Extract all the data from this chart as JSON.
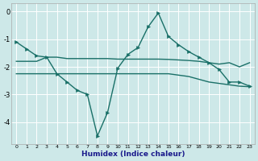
{
  "bg_color": "#cde8e8",
  "line_color": "#1a7068",
  "xlabel": "Humidex (Indice chaleur)",
  "xlim": [
    -0.5,
    23.5
  ],
  "ylim": [
    -4.8,
    0.3
  ],
  "yticks": [
    0,
    -1,
    -2,
    -3,
    -4
  ],
  "xtick_labels": [
    "0",
    "1",
    "2",
    "3",
    "4",
    "5",
    "6",
    "7",
    "8",
    "9",
    "10",
    "11",
    "12",
    "13",
    "14",
    "15",
    "16",
    "17",
    "18",
    "19",
    "20",
    "21",
    "22",
    "23"
  ],
  "x": [
    0,
    1,
    2,
    3,
    4,
    5,
    6,
    7,
    8,
    9,
    10,
    11,
    12,
    13,
    14,
    15,
    16,
    17,
    18,
    19,
    20,
    21,
    22,
    23
  ],
  "y_zigzag": [
    -1.1,
    -1.35,
    -1.6,
    -1.65,
    -2.25,
    -2.55,
    -2.85,
    -3.0,
    -4.5,
    -3.65,
    -2.05,
    -1.55,
    -1.3,
    -0.55,
    -0.05,
    -0.9,
    -1.2,
    -1.45,
    -1.65,
    -1.85,
    -2.1,
    -2.55,
    -2.55,
    -2.7
  ],
  "y_flat1": [
    -1.8,
    -1.8,
    -1.8,
    -1.65,
    -1.65,
    -1.7,
    -1.7,
    -1.7,
    -1.7,
    -1.7,
    -1.72,
    -1.72,
    -1.72,
    -1.72,
    -1.72,
    -1.73,
    -1.75,
    -1.77,
    -1.8,
    -1.85,
    -1.9,
    -1.85,
    -2.0,
    -1.85
  ],
  "y_flat2": [
    -2.25,
    -2.25,
    -2.25,
    -2.25,
    -2.25,
    -2.25,
    -2.25,
    -2.25,
    -2.25,
    -2.25,
    -2.25,
    -2.25,
    -2.25,
    -2.25,
    -2.25,
    -2.25,
    -2.3,
    -2.35,
    -2.45,
    -2.55,
    -2.6,
    -2.65,
    -2.7,
    -2.72
  ]
}
